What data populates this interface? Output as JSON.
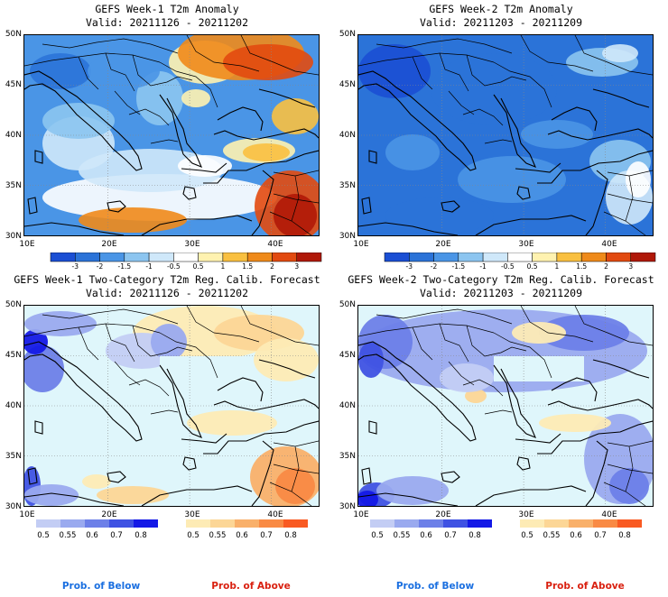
{
  "colors": {
    "below": "#1a6fe0",
    "above": "#d92010",
    "sea_light": "#dff6fb",
    "anom_scale": [
      "#1b4fd4",
      "#2b73d8",
      "#4a95e6",
      "#8cc5f0",
      "#cfe8fa",
      "#ffffff",
      "#fff2b0",
      "#f9c040",
      "#ef8a1a",
      "#e24a10",
      "#b01808"
    ],
    "prob_below": [
      "#c3cdf4",
      "#9aaaef",
      "#6d80e8",
      "#3f52e3",
      "#1419e6"
    ],
    "prob_above": [
      "#fdebb5",
      "#fcd696",
      "#f9b06a",
      "#f98a44",
      "#f95a22"
    ]
  },
  "ticks": {
    "lat": [
      "50N",
      "45N",
      "40N",
      "35N",
      "30N"
    ],
    "lon": [
      "10E",
      "20E",
      "30E",
      "40E"
    ]
  },
  "anom_scale_labels": [
    "-3",
    "-2",
    "-1.5",
    "-1",
    "-0.5",
    "0.5",
    "1",
    "1.5",
    "2",
    "3"
  ],
  "prob_scale_labels": [
    "0.5",
    "0.55",
    "0.6",
    "0.7",
    "0.8"
  ],
  "panels": [
    {
      "title": "GEFS Week-1 T2m Anomaly",
      "valid": "Valid: 20211126 - 20211202",
      "variant": "anom1"
    },
    {
      "title": "GEFS Week-2 T2m Anomaly",
      "valid": "Valid: 20211203 - 20211209",
      "variant": "anom2"
    },
    {
      "title": "GEFS Week-1 Two-Category T2m Reg. Calib. Forecast",
      "valid": "Valid: 20211126 - 20211202",
      "variant": "prob1"
    },
    {
      "title": "GEFS Week-2 Two-Category T2m Reg. Calib. Forecast",
      "valid": "Valid: 20211203 - 20211209",
      "variant": "prob2"
    }
  ],
  "legend": {
    "below_label": "Prob. of Below",
    "above_label": "Prob. of Above"
  }
}
